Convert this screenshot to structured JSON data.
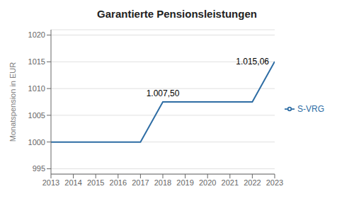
{
  "chart_data": {
    "type": "line",
    "title": "Garantierte Pensionsleistungen",
    "ylabel": "Monatspension in EUR",
    "x": [
      2013,
      2014,
      2015,
      2016,
      2017,
      2018,
      2019,
      2020,
      2021,
      2022,
      2023
    ],
    "series": [
      {
        "name": "S-VRG",
        "color": "#2e6da4",
        "values": [
          1000,
          1000,
          1000,
          1000,
          1000,
          1007.5,
          1007.5,
          1007.5,
          1007.5,
          1007.5,
          1015.06
        ]
      }
    ],
    "xlim": [
      2013,
      2023
    ],
    "xticks": [
      2013,
      2014,
      2015,
      2016,
      2017,
      2018,
      2019,
      2020,
      2021,
      2022,
      2023
    ],
    "ylim": [
      994,
      1021
    ],
    "yticks": [
      995,
      1000,
      1005,
      1010,
      1015,
      1020
    ],
    "grid": "y",
    "legend": "right",
    "annotations": [
      {
        "text": "1.007,50",
        "x": 2018,
        "y": 1007.5
      },
      {
        "text": "1.015,06",
        "x": 2023,
        "y": 1015.06
      }
    ]
  }
}
